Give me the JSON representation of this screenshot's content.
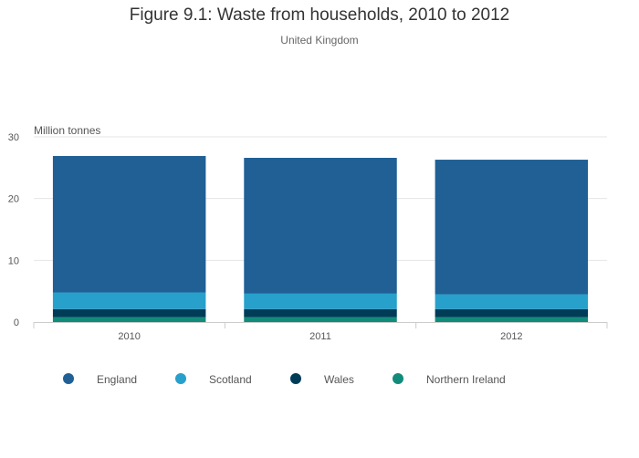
{
  "title": "Figure 9.1: Waste from households, 2010 to 2012",
  "subtitle": "United Kingdom",
  "colors": {
    "England": "#206095",
    "Scotland": "#27a0cc",
    "Wales": "#003c57",
    "Northern Ireland": "#118c7b",
    "grid": "#e6e6e6",
    "axis": "#cccccc"
  },
  "chart_data": {
    "type": "bar",
    "stacked": true,
    "categories": [
      "2010",
      "2011",
      "2012"
    ],
    "series": [
      {
        "name": "Northern Ireland",
        "values": [
          0.8,
          0.8,
          0.8
        ]
      },
      {
        "name": "Wales",
        "values": [
          1.3,
          1.3,
          1.3
        ]
      },
      {
        "name": "Scotland",
        "values": [
          2.7,
          2.5,
          2.4
        ]
      },
      {
        "name": "England",
        "values": [
          22.1,
          22.0,
          21.8
        ]
      }
    ],
    "legend_order": [
      "England",
      "Scotland",
      "Wales",
      "Northern Ireland"
    ],
    "ylabel": "Million tonnes",
    "ylim": [
      0,
      30
    ],
    "yticks": [
      0,
      10,
      20,
      30
    ],
    "grid": true,
    "legend_position": "bottom"
  }
}
